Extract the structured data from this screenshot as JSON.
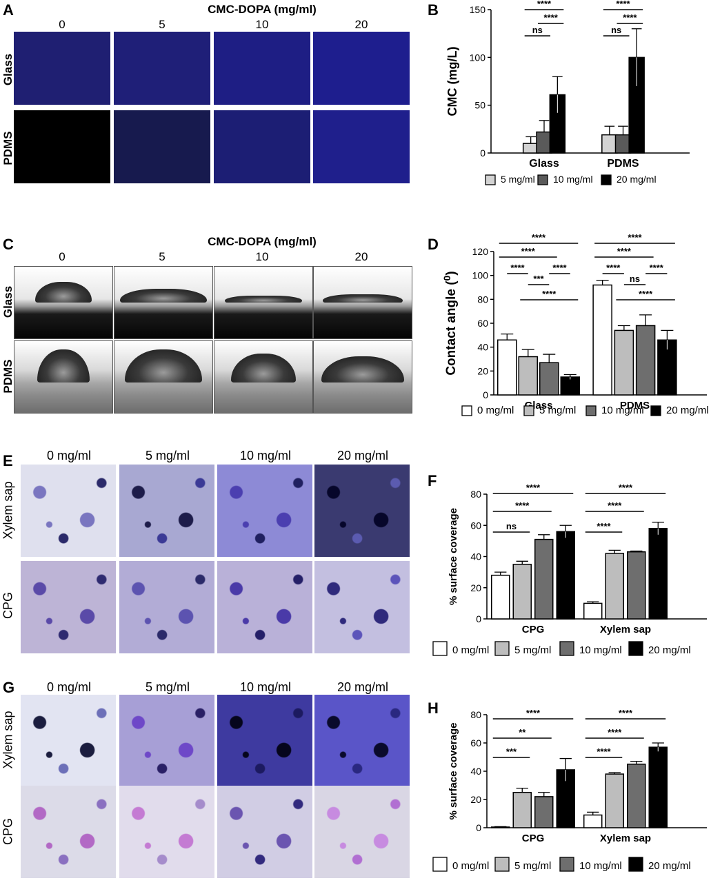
{
  "panels": {
    "A": {
      "label": "A",
      "header": "CMC-DOPA (mg/ml)",
      "columns": [
        "0",
        "5",
        "10",
        "20"
      ],
      "rows": [
        "Glass",
        "PDMS"
      ],
      "tints": [
        [
          "#1f1f72",
          "#1f1f78",
          "#1e1e84",
          "#1e1e8e"
        ],
        [
          "#000000",
          "#171a4e",
          "#1c1e74",
          "#1f1f8c"
        ]
      ]
    },
    "C": {
      "label": "C",
      "header": "CMC-DOPA (mg/ml)",
      "columns": [
        "0",
        "5",
        "10",
        "20"
      ],
      "rows": [
        "Glass",
        "PDMS"
      ]
    },
    "E": {
      "label": "E",
      "columns": [
        "0 mg/ml",
        "5 mg/ml",
        "10 mg/ml",
        "20 mg/ml"
      ],
      "rows": [
        "Xylem sap",
        "CPG"
      ]
    },
    "G": {
      "label": "G",
      "columns": [
        "0 mg/ml",
        "5 mg/ml",
        "10 mg/ml",
        "20 mg/ml"
      ],
      "rows": [
        "Xylem sap",
        "CPG"
      ]
    }
  },
  "chart_data": [
    {
      "id": "B",
      "label": "B",
      "type": "bar",
      "categories": [
        "Glass",
        "PDMS"
      ],
      "ylabel": "CMC (mg/L)",
      "ylim": [
        0,
        150
      ],
      "yticks": [
        0,
        50,
        100,
        150
      ],
      "legend_position": "bottom",
      "series": [
        {
          "name": "5 mg/ml",
          "color": "#d3d3d3",
          "values": [
            10,
            19
          ],
          "errors": [
            7,
            9
          ]
        },
        {
          "name": "10 mg/ml",
          "color": "#5a5a5a",
          "values": [
            22,
            19
          ],
          "errors": [
            12,
            9
          ]
        },
        {
          "name": "20 mg/ml",
          "color": "#000000",
          "values": [
            61,
            100
          ],
          "errors": [
            19,
            30
          ]
        }
      ],
      "significance": [
        {
          "group": 0,
          "from": 1,
          "to": 2,
          "level": 2,
          "text": "****"
        },
        {
          "group": 0,
          "from": 0,
          "to": 1,
          "level": 1,
          "text": "ns"
        },
        {
          "group": 0,
          "from": 0,
          "to": 2,
          "level": 3,
          "text": "****"
        },
        {
          "group": 1,
          "from": 1,
          "to": 2,
          "level": 2,
          "text": "****"
        },
        {
          "group": 1,
          "from": 0,
          "to": 1,
          "level": 1,
          "text": "ns"
        },
        {
          "group": 1,
          "from": 0,
          "to": 2,
          "level": 3,
          "text": "****"
        }
      ]
    },
    {
      "id": "D",
      "label": "D",
      "type": "bar",
      "categories": [
        "Glass",
        "PDMS"
      ],
      "ylabel": "Contact angle (0)",
      "ylabel_main": "Contact angle (",
      "ylabel_sup": "0",
      "ylabel_end": ")",
      "ylim": [
        0,
        120
      ],
      "yticks": [
        0,
        20,
        40,
        60,
        80,
        100,
        120
      ],
      "legend_position": "bottom",
      "series": [
        {
          "name": "0 mg/ml",
          "color": "#ffffff",
          "values": [
            46,
            92
          ],
          "errors": [
            5,
            4
          ]
        },
        {
          "name": "5 mg/ml",
          "color": "#bdbdbd",
          "values": [
            32,
            54
          ],
          "errors": [
            6,
            4
          ]
        },
        {
          "name": "10 mg/ml",
          "color": "#6e6e6e",
          "values": [
            27,
            58
          ],
          "errors": [
            7,
            9
          ]
        },
        {
          "name": "20 mg/ml",
          "color": "#000000",
          "values": [
            15,
            46
          ],
          "errors": [
            2,
            8
          ]
        }
      ],
      "significance": [
        {
          "group": 0,
          "from": 0,
          "to": 1,
          "level": 1,
          "text": "****"
        },
        {
          "group": 0,
          "from": 1,
          "to": 2,
          "level": 0,
          "text": "***"
        },
        {
          "group": 0,
          "from": 2,
          "to": 3,
          "level": 1,
          "text": "****"
        },
        {
          "group": 0,
          "from": 1,
          "to": 3,
          "level": -1,
          "text": "****"
        },
        {
          "group": 0,
          "from": 0,
          "to": 2,
          "level": 2,
          "text": "****"
        },
        {
          "group": 0,
          "from": 0,
          "to": 3,
          "level": 3,
          "text": "****"
        },
        {
          "group": 1,
          "from": 0,
          "to": 1,
          "level": 1,
          "text": "****"
        },
        {
          "group": 1,
          "from": 1,
          "to": 2,
          "level": 0,
          "text": "ns"
        },
        {
          "group": 1,
          "from": 2,
          "to": 3,
          "level": 1,
          "text": "****"
        },
        {
          "group": 1,
          "from": 1,
          "to": 3,
          "level": -1,
          "text": "****"
        },
        {
          "group": 1,
          "from": 0,
          "to": 2,
          "level": 2,
          "text": "****"
        },
        {
          "group": 1,
          "from": 0,
          "to": 3,
          "level": 3,
          "text": "****"
        }
      ]
    },
    {
      "id": "F",
      "label": "F",
      "type": "bar",
      "categories": [
        "CPG",
        "Xylem sap"
      ],
      "ylabel": "% surface coverage",
      "ylim": [
        0,
        80
      ],
      "yticks": [
        0,
        20,
        40,
        60,
        80
      ],
      "legend_position": "bottom",
      "series": [
        {
          "name": "0 mg/ml",
          "color": "#ffffff",
          "values": [
            28,
            10
          ],
          "errors": [
            2,
            1
          ]
        },
        {
          "name": "5 mg/ml",
          "color": "#bdbdbd",
          "values": [
            35,
            42
          ],
          "errors": [
            2,
            2
          ]
        },
        {
          "name": "10 mg/ml",
          "color": "#6e6e6e",
          "values": [
            51,
            43
          ],
          "errors": [
            3,
            0.5
          ]
        },
        {
          "name": "20 mg/ml",
          "color": "#000000",
          "values": [
            56,
            58
          ],
          "errors": [
            4,
            4
          ]
        }
      ],
      "significance": [
        {
          "group": 0,
          "from": 0,
          "to": 1,
          "level": 1,
          "text": "ns"
        },
        {
          "group": 0,
          "from": 0,
          "to": 2,
          "level": 2,
          "text": "****"
        },
        {
          "group": 0,
          "from": 0,
          "to": 3,
          "level": 3,
          "text": "****"
        },
        {
          "group": 1,
          "from": 0,
          "to": 1,
          "level": 1,
          "text": "****"
        },
        {
          "group": 1,
          "from": 0,
          "to": 2,
          "level": 2,
          "text": "****"
        },
        {
          "group": 1,
          "from": 0,
          "to": 3,
          "level": 3,
          "text": "****"
        }
      ]
    },
    {
      "id": "H",
      "label": "H",
      "type": "bar",
      "categories": [
        "CPG",
        "Xylem sap"
      ],
      "ylabel": "% surface coverage",
      "ylim": [
        0,
        80
      ],
      "yticks": [
        0,
        20,
        40,
        60,
        80
      ],
      "legend_position": "bottom",
      "series": [
        {
          "name": "0 mg/ml",
          "color": "#ffffff",
          "values": [
            0.5,
            9
          ],
          "errors": [
            0.3,
            2
          ]
        },
        {
          "name": "5 mg/ml",
          "color": "#bdbdbd",
          "values": [
            25,
            38
          ],
          "errors": [
            3,
            1
          ]
        },
        {
          "name": "10 mg/ml",
          "color": "#6e6e6e",
          "values": [
            22,
            45
          ],
          "errors": [
            3,
            2
          ]
        },
        {
          "name": "20 mg/ml",
          "color": "#000000",
          "values": [
            41,
            57
          ],
          "errors": [
            8,
            3
          ]
        }
      ],
      "significance": [
        {
          "group": 0,
          "from": 0,
          "to": 1,
          "level": 1,
          "text": "***"
        },
        {
          "group": 0,
          "from": 0,
          "to": 2,
          "level": 2,
          "text": "**"
        },
        {
          "group": 0,
          "from": 0,
          "to": 3,
          "level": 3,
          "text": "****"
        },
        {
          "group": 1,
          "from": 0,
          "to": 1,
          "level": 1,
          "text": "****"
        },
        {
          "group": 1,
          "from": 0,
          "to": 2,
          "level": 2,
          "text": "****"
        },
        {
          "group": 1,
          "from": 0,
          "to": 3,
          "level": 3,
          "text": "****"
        }
      ]
    }
  ]
}
